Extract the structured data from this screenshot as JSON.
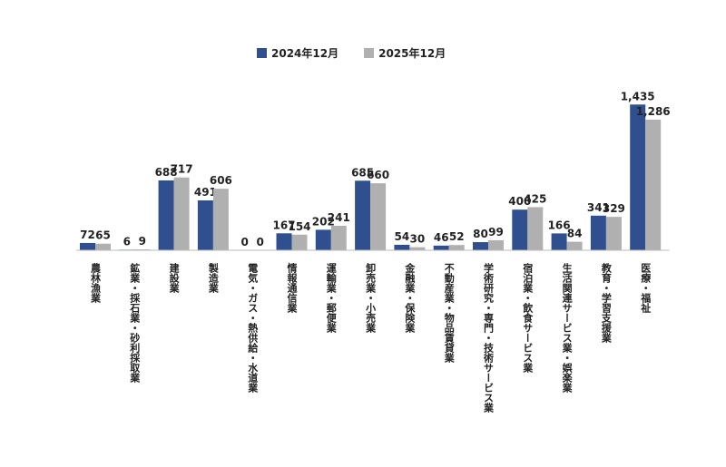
{
  "chart_data": {
    "type": "bar",
    "title": "",
    "xlabel": "",
    "ylabel": "",
    "ylim": [
      0,
      1500
    ],
    "grid": false,
    "legend_position": "top-center",
    "categories": [
      "農林漁業",
      "鉱業・採石業・砂利採取業",
      "建設業",
      "製造業",
      "電気・ガス・熱供給・水道業",
      "情報通信業",
      "運輸業・郵便業",
      "卸売業・小売業",
      "金融業・保険業",
      "不動産業・物品賃貸業",
      "学術研究・専門・技術サービス業",
      "宿泊業・飲食サービス業",
      "生活関連サービス業・娯楽業",
      "教育・学習支援業",
      "医療・福祉"
    ],
    "series": [
      {
        "name": "2024年12月",
        "color": "#2f4f8f",
        "values": [
          72,
          6,
          688,
          491,
          0,
          167,
          202,
          685,
          54,
          46,
          80,
          400,
          166,
          341,
          1435
        ],
        "labels": [
          "72",
          "6",
          "688",
          "491",
          "0",
          "167",
          "202",
          "685",
          "54",
          "46",
          "80",
          "400",
          "166",
          "341",
          "1,435"
        ]
      },
      {
        "name": "2025年12月",
        "color": "#b0b0b0",
        "values": [
          65,
          9,
          717,
          606,
          0,
          154,
          241,
          660,
          30,
          52,
          99,
          425,
          84,
          329,
          1286
        ],
        "labels": [
          "65",
          "9",
          "717",
          "606",
          "0",
          "154",
          "241",
          "660",
          "30",
          "52",
          "99",
          "425",
          "84",
          "329",
          "1,286"
        ]
      }
    ]
  }
}
